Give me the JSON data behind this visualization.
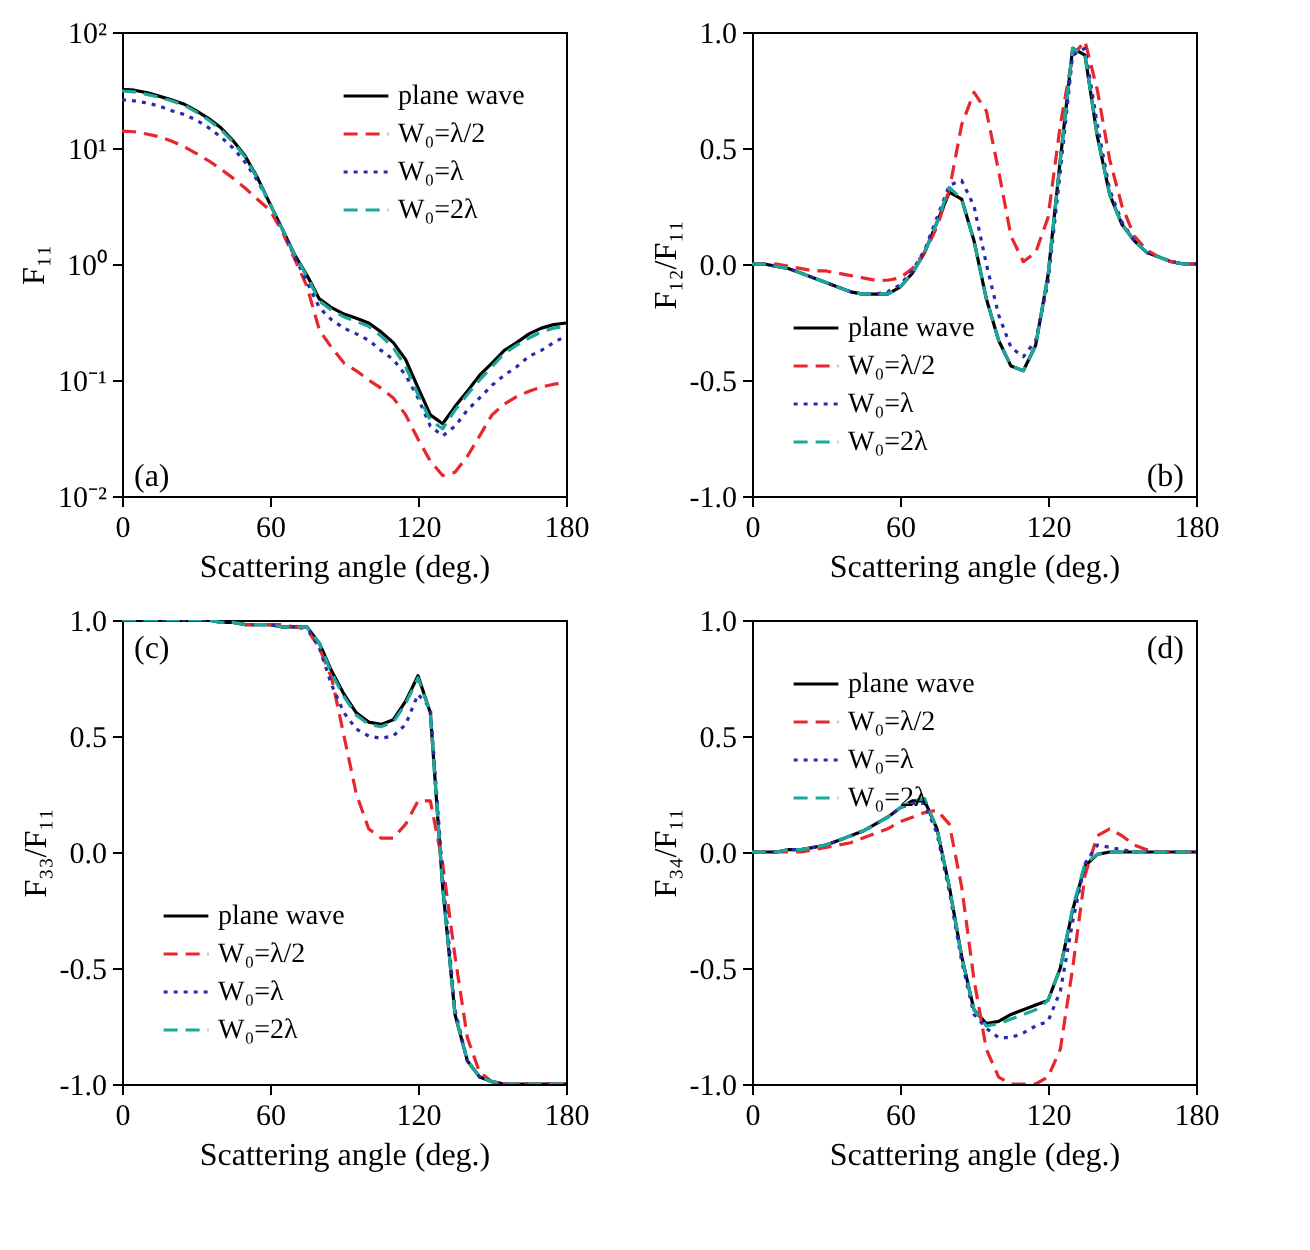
{
  "chart_data": [
    {
      "type": "line",
      "xlabel": "Scattering angle (deg.)",
      "ylabel": "F₁₁",
      "log": "y",
      "legend": "top right",
      "grid": false,
      "annotations": [
        "(a)"
      ],
      "x": [
        0,
        5,
        10,
        15,
        20,
        25,
        30,
        35,
        40,
        45,
        50,
        55,
        60,
        65,
        70,
        75,
        80,
        85,
        90,
        95,
        100,
        105,
        110,
        115,
        120,
        125,
        130,
        135,
        140,
        145,
        150,
        155,
        160,
        165,
        170,
        175,
        180
      ],
      "xlim": [
        0,
        180
      ],
      "xticks": [
        0,
        60,
        120,
        180
      ],
      "ylim": [
        0.01,
        100
      ],
      "yticks": [
        {
          "value": 0.01,
          "label": "10⁻²"
        },
        {
          "value": 0.1,
          "label": "10⁻¹"
        },
        {
          "value": 1,
          "label": "10⁰"
        },
        {
          "value": 10,
          "label": "10¹"
        },
        {
          "value": 100,
          "label": "10²"
        }
      ],
      "series": [
        {
          "name": "plane wave",
          "color": "#000000",
          "line_style": "solid",
          "values": [
            32,
            31.5,
            30,
            28,
            26,
            24,
            21,
            18,
            15,
            11.6,
            8.5,
            5.5,
            3.3,
            2,
            1.2,
            0.8,
            0.5,
            0.42,
            0.37,
            0.34,
            0.31,
            0.26,
            0.21,
            0.15,
            0.086,
            0.05,
            0.042,
            0.059,
            0.08,
            0.11,
            0.14,
            0.18,
            0.21,
            0.25,
            0.28,
            0.3,
            0.31
          ]
        },
        {
          "name": "W₀=λ/2",
          "color": "#e8262d",
          "line_style": "dashed",
          "values": [
            14,
            13.8,
            13.2,
            12.5,
            11.5,
            10.3,
            9,
            7.8,
            6.6,
            5.5,
            4.5,
            3.6,
            2.9,
            1.9,
            1.1,
            0.64,
            0.27,
            0.19,
            0.14,
            0.12,
            0.1,
            0.085,
            0.07,
            0.05,
            0.031,
            0.02,
            0.015,
            0.016,
            0.022,
            0.033,
            0.05,
            0.062,
            0.072,
            0.08,
            0.087,
            0.092,
            0.095
          ]
        },
        {
          "name": "W₀=λ",
          "color": "#2a2ab0",
          "line_style": "dotted",
          "values": [
            26,
            25.5,
            24.5,
            23,
            21,
            19.5,
            17.5,
            15,
            12.5,
            10,
            7.5,
            5.2,
            3.3,
            2,
            1.15,
            0.7,
            0.42,
            0.33,
            0.28,
            0.25,
            0.22,
            0.18,
            0.15,
            0.11,
            0.07,
            0.04,
            0.033,
            0.04,
            0.055,
            0.07,
            0.09,
            0.11,
            0.13,
            0.16,
            0.18,
            0.21,
            0.24
          ]
        },
        {
          "name": "W₀=2λ",
          "color": "#1aa89a",
          "line_style": "dashed",
          "values": [
            31,
            30.5,
            29,
            27.5,
            25.5,
            23.5,
            20.5,
            17.5,
            14.5,
            11.3,
            8.3,
            5.4,
            3.3,
            2,
            1.2,
            0.78,
            0.48,
            0.4,
            0.35,
            0.32,
            0.29,
            0.24,
            0.19,
            0.13,
            0.075,
            0.045,
            0.038,
            0.055,
            0.075,
            0.1,
            0.13,
            0.17,
            0.2,
            0.23,
            0.26,
            0.28,
            0.29
          ]
        }
      ]
    },
    {
      "type": "line",
      "xlabel": "Scattering angle (deg.)",
      "ylabel": "F₁₂/F₁₁",
      "legend": "bottom left",
      "grid": false,
      "annotations": [
        "(b)"
      ],
      "x": [
        0,
        5,
        10,
        15,
        20,
        25,
        30,
        35,
        40,
        45,
        50,
        55,
        60,
        65,
        70,
        75,
        80,
        85,
        90,
        95,
        100,
        105,
        110,
        115,
        120,
        125,
        130,
        135,
        140,
        145,
        150,
        155,
        160,
        165,
        170,
        175,
        180
      ],
      "xlim": [
        0,
        180
      ],
      "xticks": [
        0,
        60,
        120,
        180
      ],
      "ylim": [
        -1,
        1
      ],
      "yticks": [
        {
          "value": -1,
          "label": "-1.0"
        },
        {
          "value": -0.5,
          "label": "-0.5"
        },
        {
          "value": 0,
          "label": "0.0"
        },
        {
          "value": 0.5,
          "label": "0.5"
        },
        {
          "value": 1,
          "label": "1.0"
        }
      ],
      "series": [
        {
          "name": "plane wave",
          "color": "#000000",
          "line_style": "solid",
          "values": [
            0,
            0,
            -0.01,
            -0.02,
            -0.04,
            -0.06,
            -0.08,
            -0.1,
            -0.12,
            -0.13,
            -0.13,
            -0.13,
            -0.1,
            -0.04,
            0.05,
            0.18,
            0.31,
            0.28,
            0.1,
            -0.15,
            -0.33,
            -0.44,
            -0.46,
            -0.35,
            -0.05,
            0.45,
            0.93,
            0.9,
            0.55,
            0.3,
            0.17,
            0.1,
            0.05,
            0.03,
            0.01,
            0,
            0
          ]
        },
        {
          "name": "W₀=λ/2",
          "color": "#e8262d",
          "line_style": "dashed",
          "values": [
            0,
            0,
            0,
            -0.01,
            -0.02,
            -0.03,
            -0.03,
            -0.04,
            -0.05,
            -0.06,
            -0.07,
            -0.07,
            -0.06,
            -0.02,
            0.05,
            0.16,
            0.32,
            0.6,
            0.74,
            0.66,
            0.4,
            0.12,
            0.01,
            0.05,
            0.2,
            0.6,
            0.9,
            0.96,
            0.75,
            0.45,
            0.25,
            0.12,
            0.06,
            0.03,
            0.01,
            0,
            0
          ]
        },
        {
          "name": "W₀=λ",
          "color": "#2a2ab0",
          "line_style": "dotted",
          "values": [
            0,
            0,
            -0.01,
            -0.02,
            -0.04,
            -0.06,
            -0.08,
            -0.1,
            -0.12,
            -0.13,
            -0.13,
            -0.12,
            -0.09,
            -0.03,
            0.06,
            0.2,
            0.34,
            0.36,
            0.25,
            0,
            -0.22,
            -0.36,
            -0.4,
            -0.33,
            -0.08,
            0.4,
            0.9,
            0.93,
            0.6,
            0.32,
            0.18,
            0.1,
            0.05,
            0.03,
            0.01,
            0,
            0
          ]
        },
        {
          "name": "W₀=2λ",
          "color": "#1aa89a",
          "line_style": "dashed",
          "values": [
            0,
            0,
            -0.01,
            -0.02,
            -0.04,
            -0.06,
            -0.08,
            -0.1,
            -0.12,
            -0.13,
            -0.13,
            -0.13,
            -0.1,
            -0.04,
            0.05,
            0.18,
            0.33,
            0.28,
            0.1,
            -0.15,
            -0.33,
            -0.44,
            -0.46,
            -0.35,
            -0.05,
            0.45,
            0.93,
            0.9,
            0.55,
            0.3,
            0.17,
            0.1,
            0.05,
            0.03,
            0.01,
            0,
            0
          ]
        }
      ]
    },
    {
      "type": "line",
      "xlabel": "Scattering angle (deg.)",
      "ylabel": "F₃₃/F₁₁",
      "legend": "bottom left",
      "grid": false,
      "annotations": [
        "(c)"
      ],
      "x": [
        0,
        5,
        10,
        15,
        20,
        25,
        30,
        35,
        40,
        45,
        50,
        55,
        60,
        65,
        70,
        75,
        80,
        85,
        90,
        95,
        100,
        105,
        110,
        115,
        120,
        125,
        130,
        135,
        140,
        145,
        150,
        155,
        160,
        165,
        170,
        175,
        180
      ],
      "xlim": [
        0,
        180
      ],
      "xticks": [
        0,
        60,
        120,
        180
      ],
      "ylim": [
        -1,
        1
      ],
      "yticks": [
        {
          "value": -1,
          "label": "-1.0"
        },
        {
          "value": -0.5,
          "label": "-0.5"
        },
        {
          "value": 0,
          "label": "0.0"
        },
        {
          "value": 0.5,
          "label": "0.5"
        },
        {
          "value": 1,
          "label": "1.0"
        }
      ],
      "series": [
        {
          "name": "plane wave",
          "color": "#000000",
          "line_style": "solid",
          "values": [
            1,
            1,
            1,
            1,
            1,
            1,
            1,
            1,
            0.99,
            0.99,
            0.98,
            0.98,
            0.98,
            0.97,
            0.97,
            0.97,
            0.9,
            0.78,
            0.68,
            0.6,
            0.56,
            0.55,
            0.57,
            0.65,
            0.76,
            0.6,
            -0.15,
            -0.7,
            -0.9,
            -0.97,
            -0.99,
            -1,
            -1,
            -1,
            -1,
            -1,
            -1
          ]
        },
        {
          "name": "W₀=λ/2",
          "color": "#e8262d",
          "line_style": "dashed",
          "values": [
            null,
            null,
            null,
            null,
            null,
            null,
            null,
            null,
            null,
            null,
            0.98,
            0.98,
            0.98,
            0.98,
            0.97,
            0.96,
            0.88,
            0.75,
            0.5,
            0.25,
            0.1,
            0.06,
            0.06,
            0.12,
            0.22,
            0.22,
            -0.05,
            -0.45,
            -0.8,
            -0.95,
            -0.99,
            -1,
            -1,
            -1,
            -1,
            -1,
            -1
          ]
        },
        {
          "name": "W₀=λ",
          "color": "#2a2ab0",
          "line_style": "dotted",
          "values": [
            1,
            1,
            1,
            1,
            1,
            1,
            1,
            1,
            0.99,
            0.99,
            0.98,
            0.98,
            0.98,
            0.97,
            0.97,
            0.97,
            0.88,
            0.72,
            0.6,
            0.53,
            0.5,
            0.49,
            0.5,
            0.55,
            0.68,
            0.62,
            -0.1,
            -0.68,
            -0.9,
            -0.97,
            -0.99,
            -1,
            -1,
            -1,
            -1,
            -1,
            -1
          ]
        },
        {
          "name": "W₀=2λ",
          "color": "#1aa89a",
          "line_style": "dashed",
          "values": [
            1,
            1,
            1,
            1,
            1,
            1,
            1,
            1,
            0.99,
            0.99,
            0.98,
            0.98,
            0.98,
            0.97,
            0.97,
            0.97,
            0.9,
            0.77,
            0.67,
            0.59,
            0.55,
            0.54,
            0.56,
            0.64,
            0.75,
            0.6,
            -0.15,
            -0.7,
            -0.9,
            -0.97,
            -0.99,
            -1,
            -1,
            -1,
            -1,
            -1,
            -1
          ]
        }
      ]
    },
    {
      "type": "line",
      "xlabel": "Scattering angle (deg.)",
      "ylabel": "F₃₄/F₁₁",
      "legend": "top left",
      "grid": false,
      "annotations": [
        "(d)"
      ],
      "x": [
        0,
        5,
        10,
        15,
        20,
        25,
        30,
        35,
        40,
        45,
        50,
        55,
        60,
        65,
        70,
        75,
        80,
        85,
        90,
        95,
        100,
        105,
        110,
        115,
        120,
        125,
        130,
        135,
        140,
        145,
        150,
        155,
        160,
        165,
        170,
        175,
        180
      ],
      "xlim": [
        0,
        180
      ],
      "xticks": [
        0,
        60,
        120,
        180
      ],
      "ylim": [
        -1,
        1
      ],
      "yticks": [
        {
          "value": -1,
          "label": "-1.0"
        },
        {
          "value": -0.5,
          "label": "-0.5"
        },
        {
          "value": 0,
          "label": "0.0"
        },
        {
          "value": 0.5,
          "label": "0.5"
        },
        {
          "value": 1,
          "label": "1.0"
        }
      ],
      "series": [
        {
          "name": "plane wave",
          "color": "#000000",
          "line_style": "solid",
          "values": [
            0,
            0,
            0,
            0.01,
            0.01,
            0.02,
            0.03,
            0.05,
            0.07,
            0.09,
            0.12,
            0.15,
            0.19,
            0.22,
            0.22,
            0.1,
            -0.15,
            -0.45,
            -0.68,
            -0.74,
            -0.73,
            -0.7,
            -0.68,
            -0.66,
            -0.64,
            -0.5,
            -0.25,
            -0.06,
            -0.01,
            0,
            0,
            0,
            0,
            0,
            0,
            0,
            0
          ]
        },
        {
          "name": "W₀=λ/2",
          "color": "#e8262d",
          "line_style": "dashed",
          "values": [
            0,
            0,
            0,
            0,
            0,
            0.01,
            0.02,
            0.03,
            0.04,
            0.06,
            0.08,
            0.1,
            0.13,
            0.15,
            0.17,
            0.18,
            0.12,
            -0.15,
            -0.55,
            -0.85,
            -0.97,
            -1,
            -1,
            -1,
            -0.97,
            -0.85,
            -0.5,
            -0.1,
            0.07,
            0.1,
            0.07,
            0.03,
            0.01,
            0,
            0,
            0,
            0
          ]
        },
        {
          "name": "W₀=λ",
          "color": "#2a2ab0",
          "line_style": "dotted",
          "values": [
            0,
            0,
            0,
            0.01,
            0.01,
            0.02,
            0.03,
            0.05,
            0.07,
            0.09,
            0.12,
            0.15,
            0.19,
            0.21,
            0.21,
            0.08,
            -0.17,
            -0.47,
            -0.7,
            -0.76,
            -0.8,
            -0.8,
            -0.78,
            -0.75,
            -0.73,
            -0.6,
            -0.3,
            -0.05,
            0.03,
            0.02,
            0.01,
            0,
            0,
            0,
            0,
            0,
            0
          ]
        },
        {
          "name": "W₀=2λ",
          "color": "#1aa89a",
          "line_style": "dashed",
          "values": [
            0,
            0,
            0,
            0.01,
            0.01,
            0.02,
            0.03,
            0.05,
            0.07,
            0.09,
            0.12,
            0.15,
            0.19,
            0.22,
            0.23,
            0.1,
            -0.15,
            -0.45,
            -0.68,
            -0.75,
            -0.74,
            -0.72,
            -0.7,
            -0.68,
            -0.64,
            -0.5,
            -0.24,
            -0.05,
            -0.01,
            0,
            0,
            0,
            0,
            0,
            0,
            0,
            0
          ]
        }
      ]
    }
  ]
}
